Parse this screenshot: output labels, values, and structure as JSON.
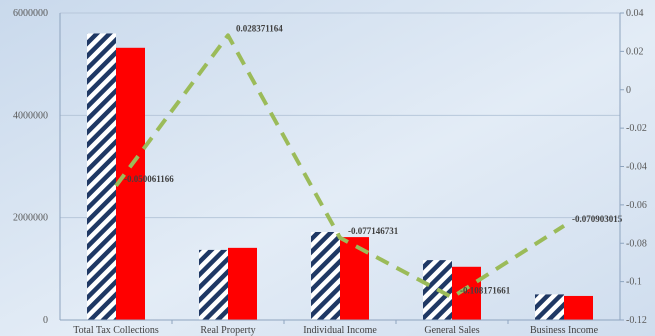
{
  "chart_data": {
    "type": "bar",
    "categories": [
      "Total Tax Collections",
      "Real Property",
      "Individual Income",
      "General Sales",
      "Business Income"
    ],
    "series": [
      {
        "values": [
          5600000,
          1370000,
          1720000,
          1170000,
          500000
        ],
        "axis": "left",
        "style": "hatched",
        "color": "#1F3864"
      },
      {
        "values": [
          5320000,
          1410000,
          1620000,
          1040000,
          470000
        ],
        "axis": "left",
        "style": "solid",
        "color": "#FF0000"
      },
      {
        "values": [
          -0.050061166,
          0.028371164,
          -0.077146731,
          -0.108171661,
          -0.070903015
        ],
        "axis": "right",
        "type": "line",
        "style": "dashed",
        "color": "#9BBB59",
        "labels": [
          "-0.050061166",
          "0.028371164",
          "-0.077146731",
          "-0.108171661",
          "-0.070903015"
        ]
      }
    ],
    "ylim": [
      0,
      6000000
    ],
    "yticks": [
      "0",
      "2000000",
      "4000000",
      "6000000"
    ],
    "y2lim": [
      -0.12,
      0.04
    ],
    "y2ticks": [
      "-0.12",
      "-0.1",
      "-0.08",
      "-0.06",
      "-0.04",
      "-0.02",
      "0",
      "0.02",
      "0.04"
    ],
    "grid": true,
    "background": "#D9E5F2"
  }
}
